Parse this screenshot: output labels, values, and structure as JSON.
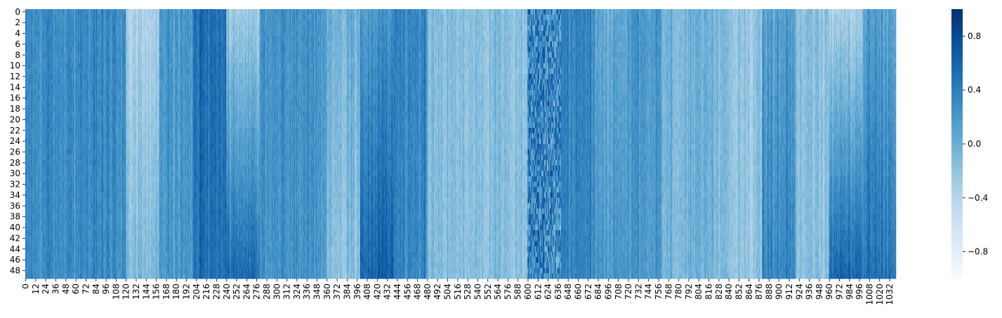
{
  "chart_data": {
    "type": "heatmap",
    "title": "",
    "xlabel": "",
    "ylabel": "",
    "n_rows": 50,
    "n_cols": 1040,
    "x_tick_step": 12,
    "y_tick_step": 2,
    "x_tick_labels": [
      "0",
      "12",
      "24",
      "36",
      "48",
      "60",
      "72",
      "84",
      "96",
      "108",
      "120",
      "132",
      "144",
      "156",
      "168",
      "180",
      "192",
      "204",
      "216",
      "228",
      "240",
      "252",
      "264",
      "276",
      "288",
      "300",
      "312",
      "324",
      "336",
      "348",
      "360",
      "372",
      "384",
      "396",
      "408",
      "420",
      "432",
      "444",
      "456",
      "468",
      "480",
      "492",
      "504",
      "516",
      "528",
      "540",
      "552",
      "564",
      "576",
      "588",
      "600",
      "612",
      "624",
      "636",
      "648",
      "660",
      "672",
      "684",
      "696",
      "708",
      "720",
      "732",
      "744",
      "756",
      "768",
      "780",
      "792",
      "804",
      "816",
      "828",
      "840",
      "852",
      "864",
      "876",
      "888",
      "900",
      "912",
      "924",
      "936",
      "948",
      "960",
      "972",
      "984",
      "996",
      "1008",
      "1020",
      "1032"
    ],
    "y_tick_labels": [
      "0",
      "2",
      "4",
      "6",
      "8",
      "10",
      "12",
      "14",
      "16",
      "18",
      "20",
      "22",
      "24",
      "26",
      "28",
      "30",
      "32",
      "34",
      "36",
      "38",
      "40",
      "42",
      "44",
      "46",
      "48"
    ],
    "colormap": "Blues",
    "vmin": -1.0,
    "vmax": 1.0,
    "colorbar_ticks": [
      {
        "value": 0.8,
        "label": "0.8"
      },
      {
        "value": 0.4,
        "label": "0.4"
      },
      {
        "value": 0.0,
        "label": "0.0"
      },
      {
        "value": -0.4,
        "label": "−0.4"
      },
      {
        "value": -0.8,
        "label": "−0.8"
      }
    ],
    "column_segments": [
      {
        "start": 0,
        "end": 120,
        "value": 0.3
      },
      {
        "start": 120,
        "end": 160,
        "value": -0.35
      },
      {
        "start": 160,
        "end": 200,
        "value": 0.2
      },
      {
        "start": 200,
        "end": 240,
        "value": 0.55
      },
      {
        "start": 240,
        "end": 280,
        "value": -0.2
      },
      {
        "start": 280,
        "end": 360,
        "value": 0.25
      },
      {
        "start": 360,
        "end": 400,
        "value": -0.05
      },
      {
        "start": 400,
        "end": 440,
        "value": 0.3
      },
      {
        "start": 440,
        "end": 480,
        "value": 0.35
      },
      {
        "start": 480,
        "end": 600,
        "value": -0.15
      },
      {
        "start": 600,
        "end": 640,
        "value": 0.3
      },
      {
        "start": 640,
        "end": 680,
        "value": 0.35
      },
      {
        "start": 680,
        "end": 760,
        "value": 0.2
      },
      {
        "start": 760,
        "end": 840,
        "value": -0.05
      },
      {
        "start": 840,
        "end": 880,
        "value": -0.2
      },
      {
        "start": 880,
        "end": 920,
        "value": 0.3
      },
      {
        "start": 920,
        "end": 1000,
        "value": -0.15
      },
      {
        "start": 1000,
        "end": 1040,
        "value": 0.25
      }
    ],
    "row_trends": [
      {
        "start": 120,
        "end": 160,
        "top": -0.35,
        "bottom": -0.1
      },
      {
        "start": 240,
        "end": 280,
        "top": -0.25,
        "bottom": 0.55
      },
      {
        "start": 360,
        "end": 400,
        "top": 0.0,
        "bottom": -0.15
      },
      {
        "start": 400,
        "end": 440,
        "top": 0.25,
        "bottom": 0.65
      },
      {
        "start": 680,
        "end": 720,
        "top": 0.05,
        "bottom": 0.2
      },
      {
        "start": 880,
        "end": 920,
        "top": 0.15,
        "bottom": 0.35
      },
      {
        "start": 960,
        "end": 1000,
        "top": -0.3,
        "bottom": 0.6
      },
      {
        "start": 1000,
        "end": 1040,
        "top": 0.1,
        "bottom": 0.45
      }
    ]
  }
}
